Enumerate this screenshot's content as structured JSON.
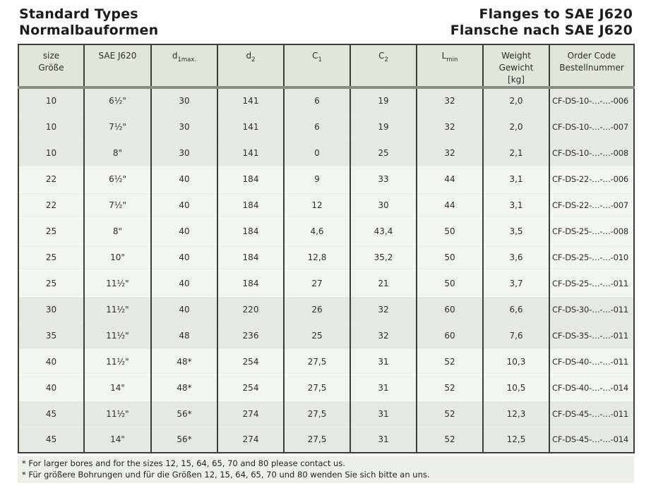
{
  "page_title": {
    "left": [
      "Standard Types",
      "Normalbauformen"
    ],
    "right": [
      "Flanges to SAE J620",
      "Flansche nach SAE J620"
    ]
  },
  "table": {
    "column_ids": [
      "size",
      "sae_j620",
      "d1max",
      "d2",
      "c1",
      "c2",
      "lmin",
      "weight_kg",
      "order_code"
    ],
    "columns": [
      {
        "line1": "size",
        "line2": "Größe"
      },
      {
        "line1": "SAE J620"
      },
      {
        "base": "d",
        "sub": "1max."
      },
      {
        "base": "d",
        "sub": "2"
      },
      {
        "base": "C",
        "sub": "1"
      },
      {
        "base": "C",
        "sub": "2"
      },
      {
        "base": "L",
        "sub": "min"
      },
      {
        "line1": "Weight",
        "line2": "Gewicht",
        "line3": "[kg]"
      },
      {
        "line1": "Order Code",
        "line2": "Bestellnummer"
      }
    ],
    "rows": [
      {
        "size": "10",
        "sae_j620": "6½\"",
        "d1max": "30",
        "d2": "141",
        "c1": "6",
        "c2": "19",
        "lmin": "32",
        "weight_kg": "2,0",
        "order_code": "CF-DS-10-…-…-006",
        "shaded": true
      },
      {
        "size": "10",
        "sae_j620": "7½\"",
        "d1max": "30",
        "d2": "141",
        "c1": "6",
        "c2": "19",
        "lmin": "32",
        "weight_kg": "2,0",
        "order_code": "CF-DS-10-…-…-007",
        "shaded": true
      },
      {
        "size": "10",
        "sae_j620": "8\"",
        "d1max": "30",
        "d2": "141",
        "c1": "0",
        "c2": "25",
        "lmin": "32",
        "weight_kg": "2,1",
        "order_code": "CF-DS-10-…-…-008",
        "shaded": true
      },
      {
        "size": "22",
        "sae_j620": "6½\"",
        "d1max": "40",
        "d2": "184",
        "c1": "9",
        "c2": "33",
        "lmin": "44",
        "weight_kg": "3,1",
        "order_code": "CF-DS-22-…-…-006",
        "shaded": false
      },
      {
        "size": "22",
        "sae_j620": "7½\"",
        "d1max": "40",
        "d2": "184",
        "c1": "12",
        "c2": "30",
        "lmin": "44",
        "weight_kg": "3,1",
        "order_code": "CF-DS-22-…-…-007",
        "shaded": false
      },
      {
        "size": "25",
        "sae_j620": "8\"",
        "d1max": "40",
        "d2": "184",
        "c1": "4,6",
        "c2": "43,4",
        "lmin": "50",
        "weight_kg": "3,5",
        "order_code": "CF-DS-25-…-…-008",
        "shaded": false
      },
      {
        "size": "25",
        "sae_j620": "10\"",
        "d1max": "40",
        "d2": "184",
        "c1": "12,8",
        "c2": "35,2",
        "lmin": "50",
        "weight_kg": "3,6",
        "order_code": "CF-DS-25-…-…-010",
        "shaded": false
      },
      {
        "size": "25",
        "sae_j620": "11½\"",
        "d1max": "40",
        "d2": "184",
        "c1": "27",
        "c2": "21",
        "lmin": "50",
        "weight_kg": "3,7",
        "order_code": "CF-DS-25-…-…-011",
        "shaded": false
      },
      {
        "size": "30",
        "sae_j620": "11½\"",
        "d1max": "40",
        "d2": "220",
        "c1": "26",
        "c2": "32",
        "lmin": "60",
        "weight_kg": "6,6",
        "order_code": "CF-DS-30-…-…-011",
        "shaded": true
      },
      {
        "size": "35",
        "sae_j620": "11½\"",
        "d1max": "48",
        "d2": "236",
        "c1": "25",
        "c2": "32",
        "lmin": "60",
        "weight_kg": "7,6",
        "order_code": "CF-DS-35-…-…-011",
        "shaded": true
      },
      {
        "size": "40",
        "sae_j620": "11½\"",
        "d1max": "48*",
        "d2": "254",
        "c1": "27,5",
        "c2": "31",
        "lmin": "52",
        "weight_kg": "10,3",
        "order_code": "CF-DS-40-…-…-011",
        "shaded": false
      },
      {
        "size": "40",
        "sae_j620": "14\"",
        "d1max": "48*",
        "d2": "254",
        "c1": "27,5",
        "c2": "31",
        "lmin": "52",
        "weight_kg": "10,5",
        "order_code": "CF-DS-40-…-…-014",
        "shaded": false
      },
      {
        "size": "45",
        "sae_j620": "11½\"",
        "d1max": "56*",
        "d2": "274",
        "c1": "27,5",
        "c2": "31",
        "lmin": "52",
        "weight_kg": "12,3",
        "order_code": "CF-DS-45-…-…-011",
        "shaded": true
      },
      {
        "size": "45",
        "sae_j620": "14\"",
        "d1max": "56*",
        "d2": "274",
        "c1": "27,5",
        "c2": "31",
        "lmin": "52",
        "weight_kg": "12,5",
        "order_code": "CF-DS-45-…-…-014",
        "shaded": true
      }
    ]
  },
  "footnotes": [
    "* For larger bores and for the sizes 12, 15, 64, 65, 70 and 80 please contact us.",
    "* Für größere Bohrungen und für die Größen 12, 15, 64, 65, 70 und 80 wenden Sie sich bitte an uns."
  ],
  "colors": {
    "header_bg": "#e1e5da",
    "band_dark": "#e6e9e0",
    "band_light": "#f2f4ee",
    "footnote_bg": "#edf0e7",
    "border_dark": "#3c3f39",
    "header_rule": "#8a8d86"
  }
}
